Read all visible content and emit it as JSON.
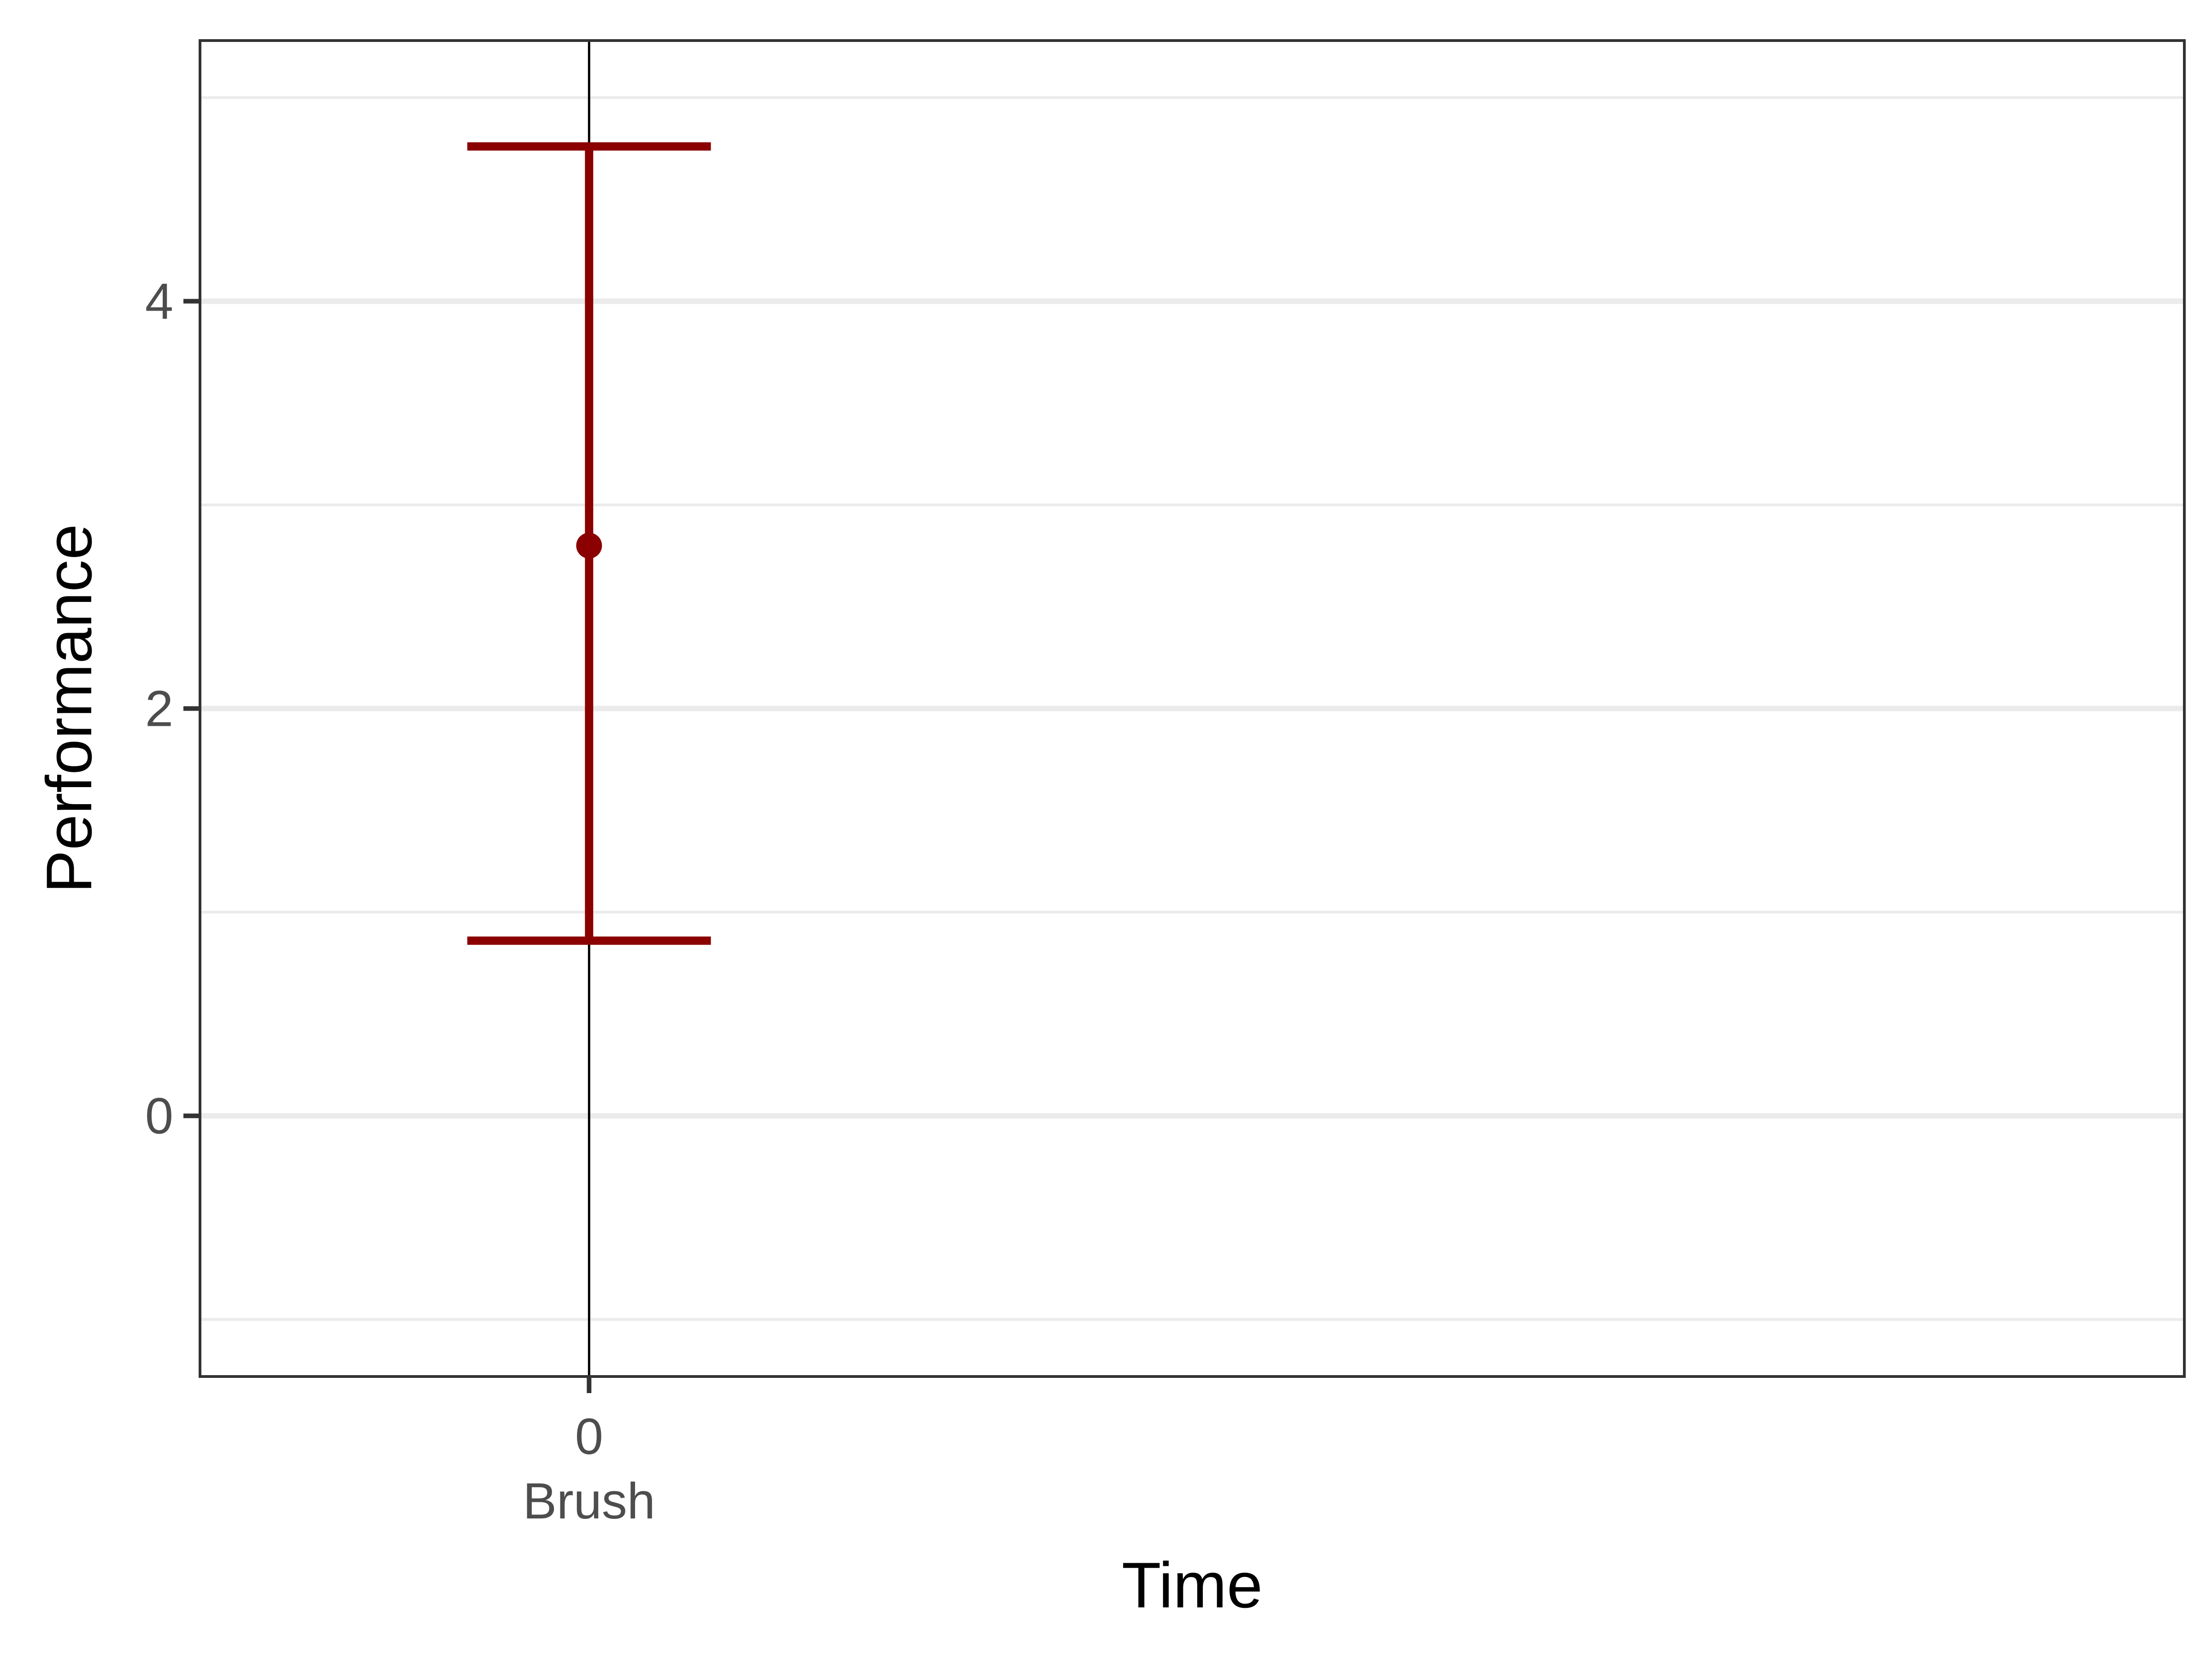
{
  "chart_data": {
    "type": "errorbar",
    "title": "",
    "xlabel": "Time",
    "ylabel": "Performance",
    "x_ticks": [
      {
        "value": 0,
        "label": "0",
        "sublabel": "Brush"
      }
    ],
    "y_ticks": [
      0,
      2,
      4
    ],
    "xlim": [
      -1,
      4.1
    ],
    "ylim": [
      -1.28,
      5.28
    ],
    "grid": {
      "major_y": true,
      "minor_y": true,
      "x": false
    },
    "reference_line": {
      "axis": "x",
      "value": 0,
      "color": "#000000"
    },
    "points": [
      {
        "x": 0,
        "y": 2.8,
        "ymin": 0.86,
        "ymax": 4.76,
        "color": "#8b0000"
      }
    ],
    "colors": {
      "series": "#8b0000",
      "grid": "#ebebeb",
      "panel_border": "#333333",
      "tick_text": "#4d4d4d"
    }
  }
}
